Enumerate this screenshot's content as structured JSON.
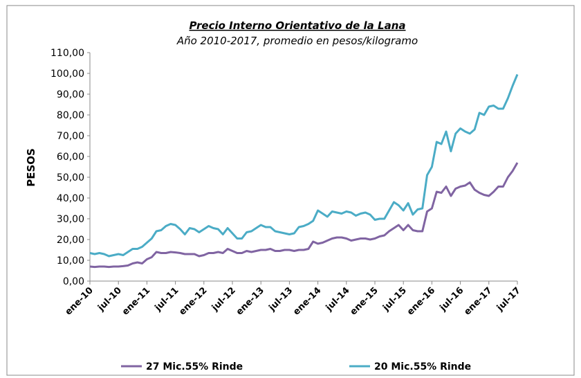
{
  "chart_data": {
    "type": "line",
    "title": "Precio Interno Orientativo de la Lana",
    "subtitle": "Año 2010-2017, promedio en pesos/kilogramo",
    "y_label": "PESOS",
    "categories": [
      "ene-10",
      null,
      null,
      null,
      null,
      null,
      "jul-10",
      null,
      null,
      null,
      null,
      null,
      "ene-11",
      null,
      null,
      null,
      null,
      null,
      "jul-11",
      null,
      null,
      null,
      null,
      null,
      "ene-12",
      null,
      null,
      null,
      null,
      null,
      "jul-12",
      null,
      null,
      null,
      null,
      null,
      "ene-13",
      null,
      null,
      null,
      null,
      null,
      "jul-13",
      null,
      null,
      null,
      null,
      null,
      "ene-14",
      null,
      null,
      null,
      null,
      null,
      "jul-14",
      null,
      null,
      null,
      null,
      null,
      "ene-15",
      null,
      null,
      null,
      null,
      null,
      "jul-15",
      null,
      null,
      null,
      null,
      null,
      "ene-16",
      null,
      null,
      null,
      null,
      null,
      "jul-16",
      null,
      null,
      null,
      null,
      null,
      "ene-17",
      null,
      null,
      null,
      null,
      null,
      "jul-17"
    ],
    "series": [
      {
        "name": "27 Mic.55% Rinde",
        "color": "#8064a2",
        "values": [
          7,
          6.8,
          7,
          7,
          6.8,
          7,
          7,
          7.2,
          7.5,
          8.5,
          9,
          8.5,
          10.5,
          11.5,
          14,
          13.5,
          13.5,
          14,
          13.8,
          13.5,
          13,
          13,
          13,
          12,
          12.5,
          13.5,
          13.5,
          14,
          13.5,
          15.5,
          14.5,
          13.5,
          13.5,
          14.5,
          14,
          14.5,
          15,
          15,
          15.5,
          14.5,
          14.5,
          15,
          15,
          14.5,
          15,
          15,
          15.5,
          19,
          18,
          18.5,
          19.5,
          20.5,
          21,
          21,
          20.5,
          19.5,
          20,
          20.5,
          20.5,
          20,
          20.5,
          21.5,
          22,
          24,
          25.5,
          27,
          24.5,
          27,
          24.5,
          24,
          24,
          33.5,
          35,
          43,
          42.5,
          45.5,
          41,
          44.5,
          45.5,
          46,
          47.5,
          44,
          42.5,
          41.5,
          41,
          43,
          45.5,
          45.5,
          50,
          53,
          57
        ]
      },
      {
        "name": "20 Mic.55% Rinde",
        "color": "#4bacc6",
        "values": [
          13.5,
          13,
          13.5,
          13,
          12,
          12.5,
          13,
          12.5,
          14,
          15.5,
          15.5,
          16.5,
          18.5,
          20.5,
          24,
          24.5,
          26.5,
          27.5,
          27,
          25,
          22.5,
          25.5,
          25,
          23.5,
          25,
          26.5,
          25.5,
          25,
          22.5,
          25.5,
          23,
          20.5,
          20.5,
          23.5,
          24,
          25.5,
          27,
          26,
          26,
          24,
          23.5,
          23,
          22.5,
          23,
          26,
          26.5,
          27.5,
          29,
          34,
          32.5,
          31,
          33.5,
          33,
          32.5,
          33.5,
          33,
          31.5,
          32.5,
          33,
          32,
          29.5,
          30,
          30,
          34,
          38,
          36.5,
          34,
          37.5,
          32,
          34.5,
          35,
          51,
          55,
          67,
          66,
          72,
          62.5,
          71,
          73.5,
          72,
          71,
          73,
          81,
          80,
          84,
          84.5,
          83,
          83,
          88,
          94,
          99.5
        ]
      }
    ],
    "ylim": [
      0,
      110
    ],
    "yticks": [
      {
        "value": 0,
        "label": "0,00"
      },
      {
        "value": 10,
        "label": "10,00"
      },
      {
        "value": 20,
        "label": "20,00"
      },
      {
        "value": 30,
        "label": "30,00"
      },
      {
        "value": 40,
        "label": "40,00"
      },
      {
        "value": 50,
        "label": "50,00"
      },
      {
        "value": 60,
        "label": "60,00"
      },
      {
        "value": 70,
        "label": "70,00"
      },
      {
        "value": 80,
        "label": "80,00"
      },
      {
        "value": 90,
        "label": "90,00"
      },
      {
        "value": 100,
        "label": "100,00"
      },
      {
        "value": 110,
        "label": "110,00"
      }
    ],
    "grid": false,
    "legend": "bottom"
  }
}
